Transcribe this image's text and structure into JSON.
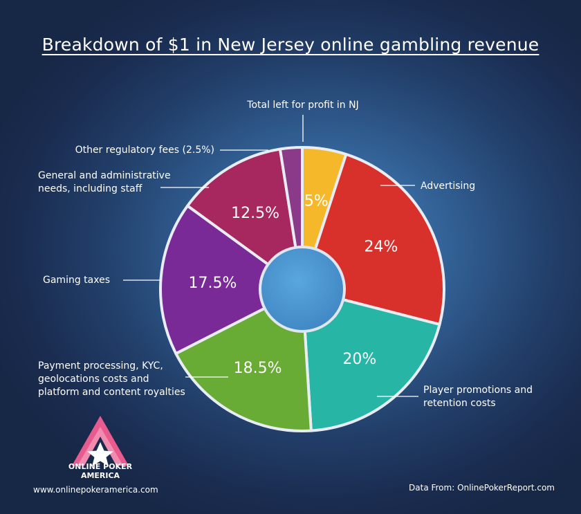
{
  "title": "Breakdown of $1 in New Jersey online gambling revenue",
  "chart_data": {
    "type": "pie",
    "title": "Breakdown of $1 in New Jersey online gambling revenue",
    "donut": true,
    "slices": [
      {
        "label": "Total left for profit in NJ",
        "value": 5,
        "value_label": "5%",
        "color": "#f5b82b",
        "show_value": true
      },
      {
        "label": "Advertising",
        "value": 24,
        "value_label": "24%",
        "color": "#d8312b",
        "show_value": true
      },
      {
        "label": "Player promotions and retention costs",
        "value": 20,
        "value_label": "20%",
        "color": "#27b5a6",
        "show_value": true
      },
      {
        "label": "Payment processing, KYC, geolocations costs and platform and content royalties",
        "value": 18.5,
        "value_label": "18.5%",
        "color": "#69ac35",
        "show_value": true
      },
      {
        "label": "Gaming taxes",
        "value": 17.5,
        "value_label": "17.5%",
        "color": "#7a2a96",
        "show_value": true
      },
      {
        "label": "General and administrative needs, including staff",
        "value": 12.5,
        "value_label": "12.5%",
        "color": "#a7285f",
        "show_value": true
      },
      {
        "label": "Other regulatory fees (2.5%)",
        "value": 2.5,
        "value_label": "2.5%",
        "color": "#8a3a88",
        "show_value": false
      }
    ],
    "legend": "callouts"
  },
  "callouts": {
    "profit": "Total left for profit in NJ",
    "other_fees": "Other regulatory fees (2.5%)",
    "general_1": "General and administrative",
    "general_2": "needs, including staff",
    "advertising": "Advertising",
    "gaming_taxes": "Gaming taxes",
    "payment_1": "Payment processing, KYC,",
    "payment_2": "geolocations costs and",
    "payment_3": "platform and content royalties",
    "player_1": "Player promotions and",
    "player_2": "retention costs"
  },
  "logo": {
    "line1": "ONLINE POKER",
    "line2": "AMERICA",
    "icon": "star-a-logo-icon",
    "accent_color": "#e85b8e"
  },
  "footer": {
    "website": "www.onlinepokeramerica.com",
    "source": "Data From: OnlinePokerReport.com"
  }
}
